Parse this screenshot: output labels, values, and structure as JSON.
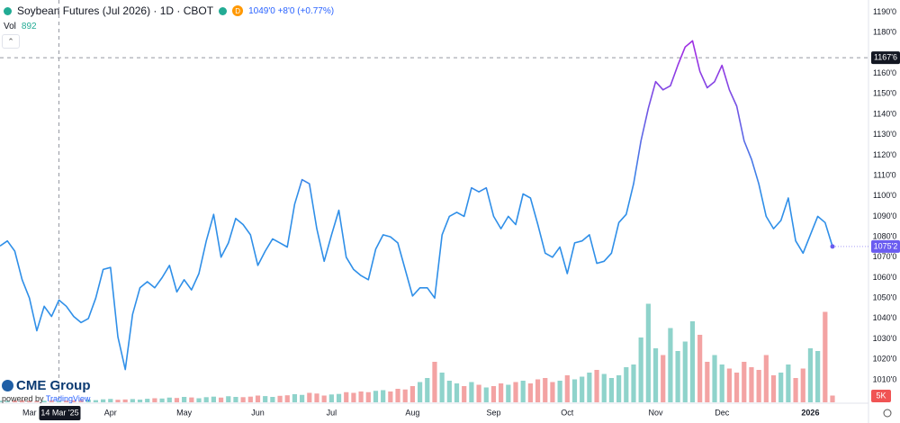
{
  "header": {
    "symbol_title": "Soybean Futures (Jul 2026) · 1D · CBOT",
    "badge": "D",
    "quote": "1049'0 +8'0 (+0.77%)",
    "vol_label": "Vol",
    "vol_value": 892
  },
  "branding": {
    "logo": "CME Group",
    "powered": "powered by",
    "platform": "TradingView"
  },
  "chart_data": {
    "type": "line",
    "categories": [
      null,
      null,
      null,
      null,
      "Mar",
      null,
      null,
      null,
      null,
      null,
      null,
      null,
      null,
      null,
      null,
      "Apr",
      null,
      null,
      null,
      null,
      null,
      null,
      null,
      null,
      null,
      "May",
      null,
      null,
      null,
      null,
      null,
      null,
      null,
      null,
      null,
      "Jun",
      null,
      null,
      null,
      null,
      null,
      null,
      null,
      null,
      null,
      "Jul",
      null,
      null,
      null,
      null,
      null,
      null,
      null,
      null,
      null,
      null,
      "Aug",
      null,
      null,
      null,
      null,
      null,
      null,
      null,
      null,
      null,
      null,
      "Sep",
      null,
      null,
      null,
      null,
      null,
      null,
      null,
      null,
      null,
      "Oct",
      null,
      null,
      null,
      null,
      null,
      null,
      null,
      null,
      null,
      null,
      null,
      "Nov",
      null,
      null,
      null,
      null,
      null,
      null,
      null,
      null,
      "Dec",
      null,
      null,
      null,
      null,
      null,
      null,
      null,
      null,
      null,
      null,
      null,
      "2026",
      null,
      null,
      null
    ],
    "values": [
      1075.5,
      1078,
      1073,
      1059,
      1050,
      1034,
      1046,
      1041,
      1049,
      1046,
      1041,
      1038,
      1040,
      1050,
      1064,
      1065,
      1031,
      1015,
      1042,
      1055,
      1058,
      1055,
      1060,
      1066,
      1053,
      1059,
      1054,
      1062,
      1078,
      1091,
      1070,
      1077,
      1089,
      1086,
      1081,
      1066,
      1073,
      1079,
      1077,
      1075,
      1096,
      1108,
      1106,
      1084,
      1068,
      1081,
      1093,
      1070,
      1064,
      1061,
      1059,
      1074,
      1081,
      1080,
      1077,
      1064,
      1051,
      1055,
      1055,
      1050,
      1081,
      1090,
      1092,
      1090,
      1104,
      1102,
      1104,
      1090,
      1084,
      1090,
      1086,
      1101,
      1099,
      1086,
      1072,
      1070,
      1075,
      1062,
      1077,
      1078,
      1081,
      1067,
      1068,
      1072,
      1087,
      1091,
      1106,
      1127,
      1143,
      1156,
      1152,
      1154,
      1164,
      1173,
      1176,
      1161,
      1153,
      1156,
      1164,
      1152,
      1144,
      1127,
      1118,
      1106,
      1090,
      1084,
      1088,
      1099,
      1078,
      1072,
      1081,
      1090,
      1087,
      1075.25
    ],
    "last_label": "1075'2",
    "line_colors": [
      "#2f8fe8",
      "#9d2fe3"
    ],
    "ylim": [
      998.5,
      1196
    ],
    "yticks": [
      {
        "value": 1010,
        "label": "1010'0"
      },
      {
        "value": 1020,
        "label": "1020'0"
      },
      {
        "value": 1030,
        "label": "1030'0"
      },
      {
        "value": 1040,
        "label": "1040'0"
      },
      {
        "value": 1050,
        "label": "1050'0"
      },
      {
        "value": 1060,
        "label": "1060'0"
      },
      {
        "value": 1070,
        "label": "1070'0"
      },
      {
        "value": 1080,
        "label": "1080'0"
      },
      {
        "value": 1090,
        "label": "1090'0"
      },
      {
        "value": 1100,
        "label": "1100'0"
      },
      {
        "value": 1110,
        "label": "1110'0"
      },
      {
        "value": 1120,
        "label": "1120'0"
      },
      {
        "value": 1130,
        "label": "1130'0"
      },
      {
        "value": 1140,
        "label": "1140'0"
      },
      {
        "value": 1150,
        "label": "1150'0"
      },
      {
        "value": 1160,
        "label": "1160'0"
      },
      {
        "value": 1180,
        "label": "1180'0"
      },
      {
        "value": 1190,
        "label": "1190'0"
      }
    ],
    "grid": false,
    "crosshair": {
      "x_label": "14 Mar '25",
      "y_value": 1167.75,
      "y_label": "1167'6"
    },
    "volume": {
      "values": [
        1200,
        1000,
        1400,
        1600,
        1100,
        900,
        1200,
        1500,
        892,
        1300,
        1500,
        1800,
        2000,
        1600,
        2200,
        2500,
        1900,
        2100,
        2400,
        2000,
        2600,
        3000,
        2800,
        3500,
        3200,
        4000,
        3600,
        3000,
        3800,
        4200,
        3500,
        4500,
        4000,
        3800,
        4200,
        5000,
        4600,
        4000,
        4800,
        5200,
        6000,
        5500,
        7000,
        6500,
        5000,
        5800,
        6200,
        7500,
        7000,
        8000,
        7500,
        8500,
        9000,
        8000,
        10000,
        9500,
        12000,
        15000,
        18000,
        30000,
        22000,
        16000,
        14000,
        12000,
        15000,
        13000,
        11000,
        12000,
        14000,
        13000,
        15000,
        16000,
        14000,
        17000,
        18000,
        15000,
        16000,
        20000,
        17000,
        19000,
        22000,
        24000,
        21000,
        18000,
        20000,
        26000,
        28000,
        48000,
        73000,
        40000,
        35000,
        55000,
        38000,
        45000,
        60000,
        50000,
        30000,
        35000,
        28000,
        25000,
        22000,
        30000,
        26000,
        24000,
        35000,
        20000,
        22000,
        28000,
        18000,
        25000,
        40000,
        38000,
        67000,
        5000
      ],
      "last_label": "5K",
      "up_color": "#8fd3cb",
      "down_color": "#f3a3a3",
      "ylim": [
        0,
        80000
      ]
    }
  }
}
